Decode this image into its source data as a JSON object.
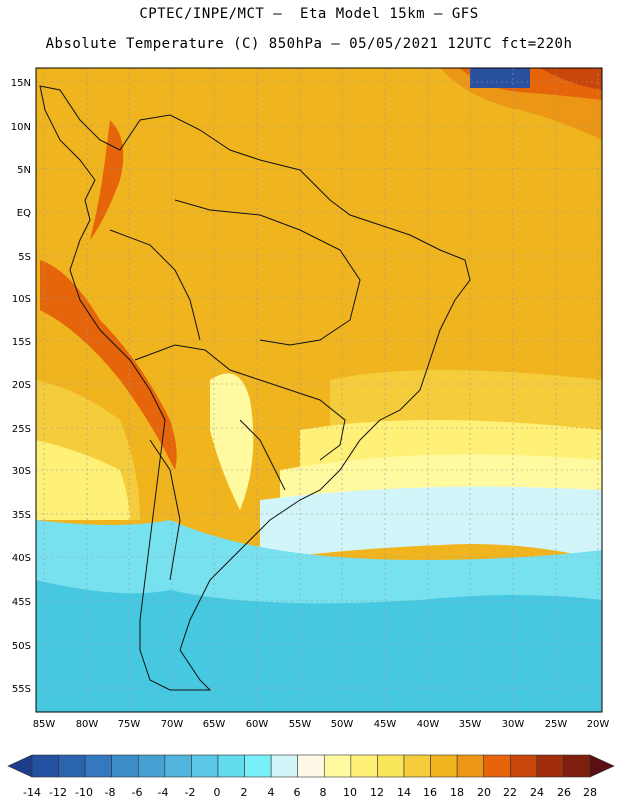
{
  "header": {
    "line1": "CPTEC/INPE/MCT –  Eta Model 15km – GFS",
    "line2": "Absolute Temperature (C) 850hPa – 05/05/2021 12UTC fct=220h"
  },
  "axes": {
    "lat_labels": [
      "15N",
      "10N",
      "5N",
      "EQ",
      "5S",
      "10S",
      "15S",
      "20S",
      "25S",
      "30S",
      "35S",
      "40S",
      "45S",
      "50S",
      "55S"
    ],
    "lon_labels": [
      "85W",
      "80W",
      "75W",
      "70W",
      "65W",
      "60W",
      "55W",
      "50W",
      "45W",
      "40W",
      "35W",
      "30W",
      "25W",
      "20W"
    ]
  },
  "colorbar": {
    "labels": [
      "-14",
      "-12",
      "-10",
      "-8",
      "-6",
      "-4",
      "-2",
      "0",
      "2",
      "4",
      "6",
      "8",
      "10",
      "12",
      "14",
      "16",
      "18",
      "20",
      "22",
      "24",
      "26",
      "28"
    ],
    "colors": [
      "#1e3c8c",
      "#23509f",
      "#2a64af",
      "#3478bd",
      "#3c8cc8",
      "#46a0d2",
      "#50b4dc",
      "#5ac8e6",
      "#64dcf0",
      "#78f0fa",
      "#d2f5fa",
      "#fff8e6",
      "#fffaa0",
      "#fff078",
      "#fae65a",
      "#f5cd3c",
      "#f0b41e",
      "#eb9614",
      "#e6640a",
      "#c8460a",
      "#a02d0a",
      "#7d1e0f",
      "#5a0f14"
    ]
  },
  "map_colors": {
    "ocean_cold": "#46c8e1",
    "ocean_mid": "#78e1f0",
    "ocean_pale": "#d2f5fa",
    "warm": "#f0b41e",
    "hot": "#eb9614",
    "hotter": "#e6640a",
    "coldest": "#2a50a0",
    "land_line": "#111111"
  }
}
